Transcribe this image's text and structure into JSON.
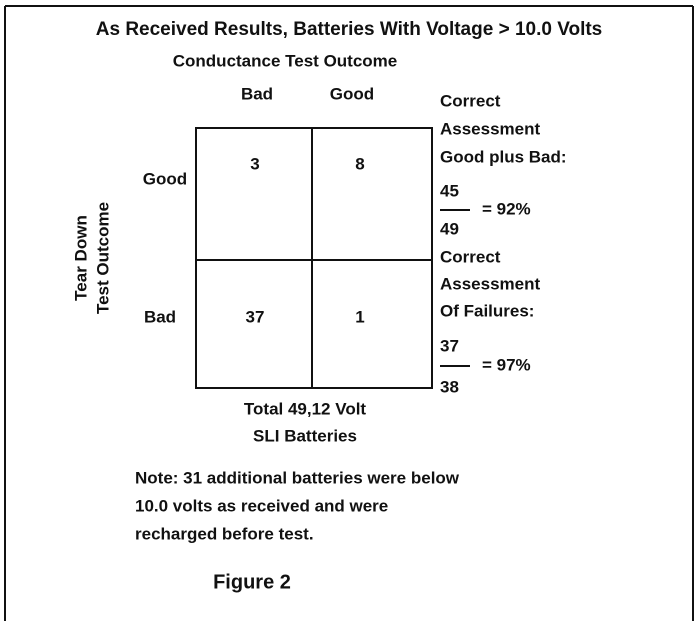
{
  "title": "As Received Results, Batteries With Voltage > 10.0 Volts",
  "column_axis": {
    "label": "Conductance Test Outcome",
    "labels": [
      "Bad",
      "Good"
    ]
  },
  "row_axis": {
    "label": [
      "Tear Down",
      "Test Outcome"
    ],
    "labels": [
      "Good",
      "Bad"
    ]
  },
  "table": {
    "rows": [
      [
        "3",
        "8"
      ],
      [
        "37",
        "1"
      ]
    ]
  },
  "footer": [
    "Total 49,12 Volt",
    "SLI Batteries"
  ],
  "assessments": [
    {
      "label": [
        "Correct",
        "Assessment",
        "Good plus Bad:"
      ],
      "numerator": "45",
      "denominator": "49",
      "result": "= 92%"
    },
    {
      "label": [
        "Correct",
        "Assessment",
        "Of Failures:"
      ],
      "numerator": "37",
      "denominator": "38",
      "result": "= 97%"
    }
  ],
  "note": [
    "Note: 31 additional batteries were below",
    "10.0 volts as received and were",
    "recharged before test."
  ],
  "caption": "Figure 2"
}
